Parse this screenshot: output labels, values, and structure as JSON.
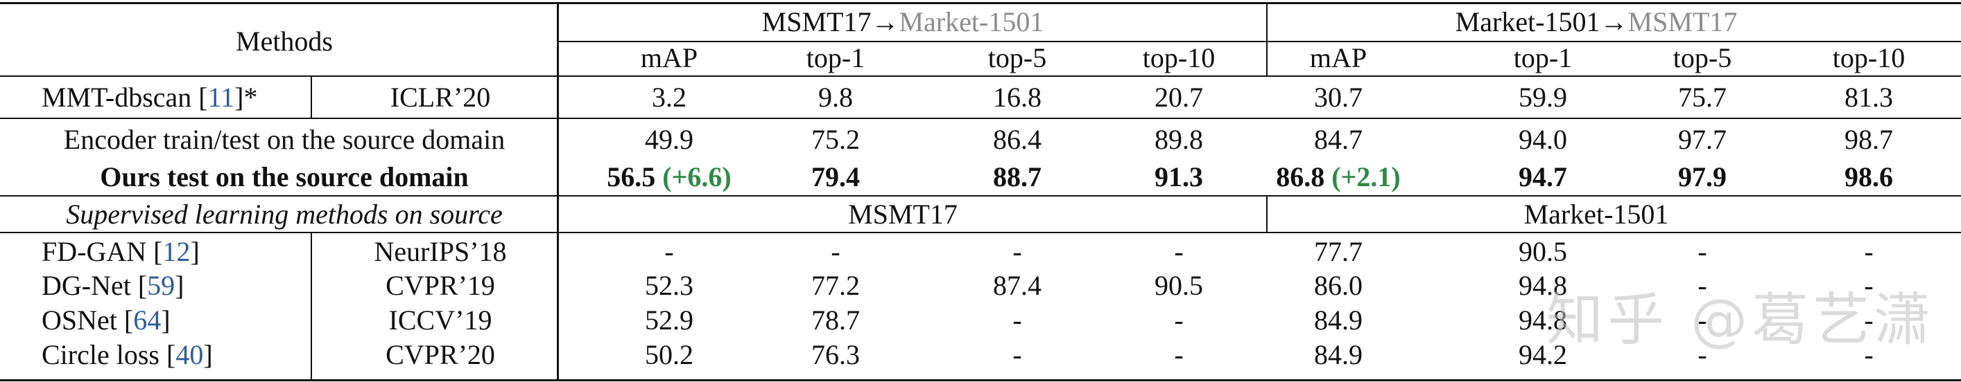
{
  "header": {
    "methods": "Methods",
    "group1": {
      "src": "MSMT17",
      "arrow": "→",
      "tgt": "Market-1501"
    },
    "group2": {
      "src": "Market-1501",
      "arrow": "→",
      "tgt": "MSMT17"
    },
    "metrics": [
      "mAP",
      "top-1",
      "top-5",
      "top-10"
    ]
  },
  "mmt_row": {
    "name": "MMT-dbscan [",
    "cite": "11",
    "suffix": "]*",
    "venue": "ICLR’20",
    "values": [
      "3.2",
      "9.8",
      "16.8",
      "20.7",
      "30.7",
      "59.9",
      "75.7",
      "81.3"
    ]
  },
  "encoder_row": {
    "label": "Encoder train/test on the source domain",
    "values": [
      "49.9",
      "75.2",
      "86.4",
      "89.8",
      "84.7",
      "94.0",
      "97.7",
      "98.7"
    ]
  },
  "ours_row": {
    "label": "Ours test on the source domain",
    "map1": "56.5",
    "gain1": "(+6.6)",
    "values1": [
      "79.4",
      "88.7",
      "91.3"
    ],
    "map2": "86.8",
    "gain2": "(+2.1)",
    "values2": [
      "94.7",
      "97.9",
      "98.6"
    ]
  },
  "supervised_header": {
    "label": "Supervised learning methods on source",
    "group1": "MSMT17",
    "group2": "Market-1501"
  },
  "supervised_rows": [
    {
      "name": "FD-GAN [",
      "cite": "12",
      "suffix": "]",
      "venue": "NeurIPS’18",
      "values": [
        "-",
        "-",
        "-",
        "-",
        "77.7",
        "90.5",
        "-",
        "-"
      ]
    },
    {
      "name": "DG-Net [",
      "cite": "59",
      "suffix": "]",
      "venue": "CVPR’19",
      "values": [
        "52.3",
        "77.2",
        "87.4",
        "90.5",
        "86.0",
        "94.8",
        "-",
        "-"
      ]
    },
    {
      "name": "OSNet [",
      "cite": "64",
      "suffix": "]",
      "venue": "ICCV’19",
      "values": [
        "52.9",
        "78.7",
        "-",
        "-",
        "84.9",
        "94.8",
        "-",
        "-"
      ]
    },
    {
      "name": "Circle loss [",
      "cite": "40",
      "suffix": "]",
      "venue": "CVPR’20",
      "values": [
        "50.2",
        "76.3",
        "-",
        "-",
        "84.9",
        "94.2",
        "-",
        "-"
      ]
    }
  ],
  "watermark": "知乎 @葛艺潇"
}
